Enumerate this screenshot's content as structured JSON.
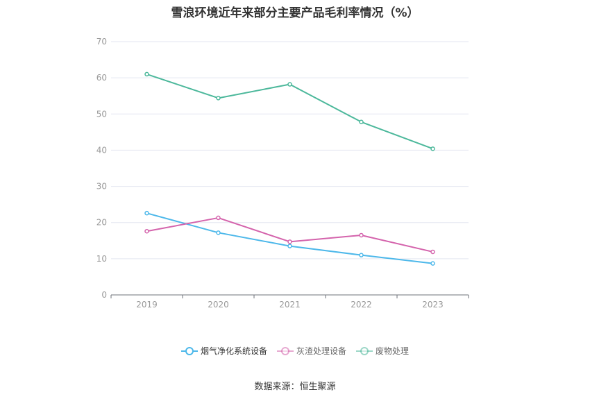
{
  "chart_data": {
    "type": "line",
    "title": "雪浪环境近年来部分主要产品毛利率情况（%）",
    "categories": [
      "2019",
      "2020",
      "2021",
      "2022",
      "2023"
    ],
    "ylim": [
      0,
      70
    ],
    "yticks": [
      0,
      10,
      20,
      30,
      40,
      50,
      60,
      70
    ],
    "grid": true,
    "legend_position": "bottom",
    "series": [
      {
        "name": "烟气净化系统设备",
        "color": "#4db8ea",
        "values": [
          22.6,
          17.2,
          13.5,
          11.0,
          8.7
        ]
      },
      {
        "name": "灰渣处理设备",
        "color": "#d463ac",
        "values": [
          17.6,
          21.3,
          14.7,
          16.5,
          11.9
        ]
      },
      {
        "name": "废物处理",
        "color": "#4cb89b",
        "values": [
          61.0,
          54.4,
          58.2,
          47.8,
          40.4
        ]
      }
    ]
  },
  "source": "数据来源：恒生聚源"
}
